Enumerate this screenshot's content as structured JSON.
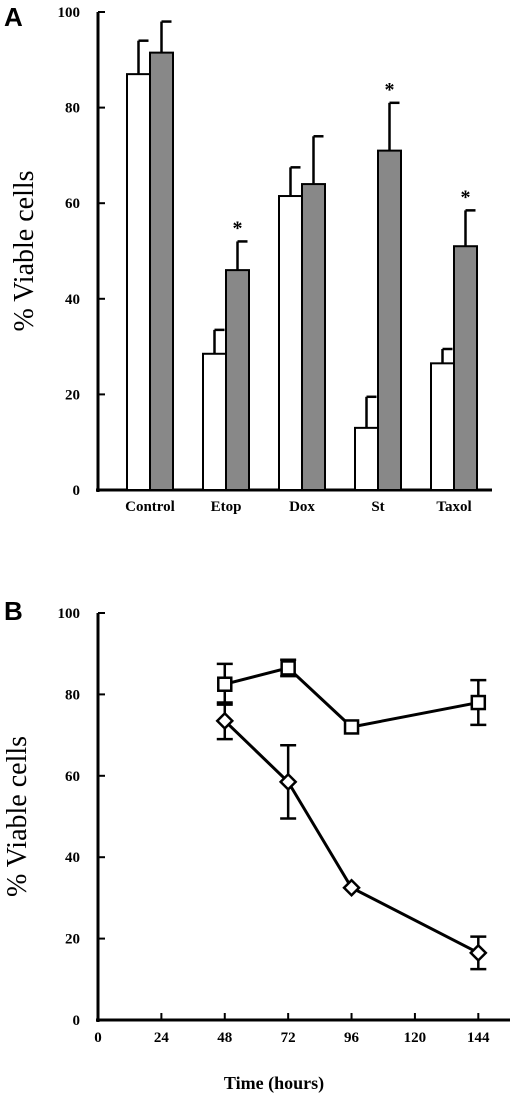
{
  "chart_data": [
    {
      "panel": "A",
      "type": "bar",
      "ylabel": "% Viable cells",
      "xlabel": "",
      "ylim": [
        0,
        100
      ],
      "yticks": [
        0,
        20,
        40,
        60,
        80,
        100
      ],
      "categories": [
        "Control",
        "Etop",
        "Dox",
        "St",
        "Taxol"
      ],
      "series": [
        {
          "color": "#ffffff",
          "values": [
            87,
            28.5,
            61.5,
            13,
            26.5
          ],
          "errors": [
            7,
            5,
            6,
            6.5,
            3
          ]
        },
        {
          "color": "#888888",
          "values": [
            91.5,
            46,
            64,
            71,
            51
          ],
          "errors": [
            6.5,
            6,
            10,
            10,
            7.5
          ]
        }
      ],
      "significance_markers": [
        {
          "category": "Etop",
          "text": "*"
        },
        {
          "category": "St",
          "text": "*"
        },
        {
          "category": "Taxol",
          "text": "*"
        }
      ]
    },
    {
      "panel": "B",
      "type": "line",
      "xlabel": "Time (hours)",
      "ylabel": "% Viable cells",
      "xlim": [
        0,
        156
      ],
      "ylim": [
        0,
        100
      ],
      "xticks": [
        0,
        24,
        48,
        72,
        96,
        120,
        144
      ],
      "yticks": [
        0,
        20,
        40,
        60,
        80,
        100
      ],
      "series": [
        {
          "marker": "square",
          "x": [
            48,
            72,
            96,
            144
          ],
          "y": [
            82.5,
            86.5,
            72,
            78
          ],
          "errors": [
            5,
            2,
            0,
            5.5
          ]
        },
        {
          "marker": "diamond",
          "x": [
            48,
            72,
            96,
            144
          ],
          "y": [
            73.5,
            58.5,
            32.5,
            16.5
          ],
          "errors": [
            4.5,
            9,
            0,
            4
          ]
        }
      ]
    }
  ]
}
